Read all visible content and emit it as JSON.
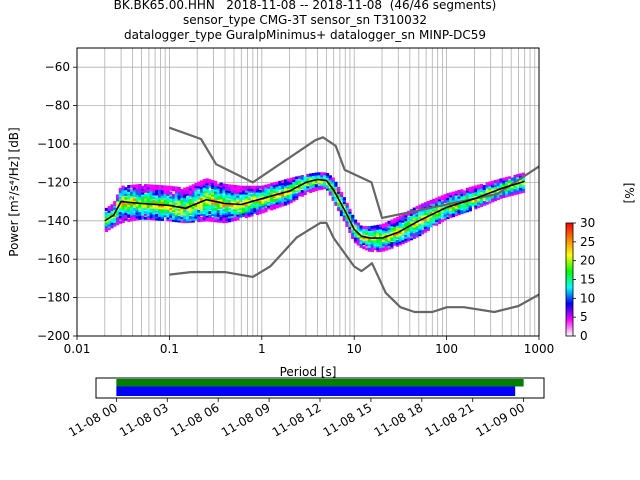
{
  "title": {
    "line1": "BK.BK65.00.HHN   2018-11-08 -- 2018-11-08  (46/46 segments)",
    "line2": "sensor_type CMG-3T sensor_sn T310032",
    "line3": "datalogger_type GuralpMinimus+ datalogger_sn MINP-DC59"
  },
  "chart_data": [
    {
      "type": "heatmap",
      "subtype": "probabilistic power spectral density",
      "xlabel": "Period [s]",
      "ylabel": "Power [m²/s⁴/Hz] [dB]",
      "xscale": "log",
      "xlim": [
        0.01,
        1000
      ],
      "ylim": [
        -200,
        -50
      ],
      "x_ticks": [
        "0.01",
        "0.1",
        "1",
        "10",
        "100",
        "1000"
      ],
      "y_ticks": [
        "−200",
        "−180",
        "−160",
        "−140",
        "−120",
        "−100",
        "−80",
        "−60"
      ],
      "grid": true,
      "colorbar": {
        "label": "[%]",
        "ticks": [
          "0",
          "5",
          "10",
          "15",
          "20",
          "25",
          "30"
        ],
        "range": [
          0,
          30
        ],
        "colors": [
          "#ffffff",
          "#ff00ff",
          "#0000ff",
          "#00ffff",
          "#00ff00",
          "#ffff00",
          "#ff8000",
          "#ff0000"
        ]
      },
      "series": [
        {
          "name": "",
          "role": "high noise model",
          "color": "#666666",
          "x": [
            0.1,
            0.22,
            0.32,
            0.8,
            3.8,
            4.6,
            6.3,
            7.9,
            15.4,
            20,
            354.8,
            10000
          ],
          "y": [
            -91.5,
            -97.4,
            -110.5,
            -120,
            -98,
            -96.5,
            -101,
            -113.5,
            -120,
            -138.5,
            -126,
            -80
          ]
        },
        {
          "name": "",
          "role": "low noise model",
          "color": "#666666",
          "x": [
            0.1,
            0.17,
            0.4,
            0.8,
            1.24,
            2.4,
            4.3,
            5,
            6,
            10,
            12,
            15.6,
            21.9,
            31.6,
            45,
            70,
            101,
            154,
            328,
            600,
            10000
          ],
          "y": [
            -168,
            -166.7,
            -166.7,
            -169.2,
            -163.7,
            -148.6,
            -141.1,
            -141.1,
            -149,
            -163.8,
            -166.2,
            -162.1,
            -177.5,
            -185,
            -187.5,
            -187.5,
            -185,
            -185,
            -187.5,
            -184.4,
            -151.5
          ]
        },
        {
          "name": "",
          "role": "median",
          "color": "#000000",
          "x": [
            0.02,
            0.025,
            0.03,
            0.05,
            0.1,
            0.15,
            0.25,
            0.4,
            0.6,
            1,
            2,
            3,
            4,
            5,
            6,
            8,
            10,
            12,
            15,
            20,
            30,
            50,
            100,
            200,
            400,
            700
          ],
          "y": [
            -140,
            -137,
            -130,
            -131,
            -132,
            -133.5,
            -129,
            -131,
            -131.5,
            -128.5,
            -124.5,
            -120,
            -118.5,
            -119,
            -124,
            -135,
            -144.5,
            -148,
            -149,
            -149,
            -146,
            -140,
            -133,
            -128.5,
            -123,
            -119.5
          ]
        }
      ],
      "density_band": {
        "x": [
          0.02,
          0.025,
          0.03,
          0.05,
          0.1,
          0.15,
          0.25,
          0.4,
          0.6,
          1,
          2,
          3,
          4,
          5,
          6,
          8,
          10,
          12,
          15,
          20,
          30,
          50,
          100,
          200,
          400,
          700
        ],
        "low": [
          -146,
          -143,
          -141,
          -139,
          -140,
          -141,
          -140,
          -141,
          -139,
          -136,
          -131,
          -126,
          -124,
          -123,
          -130,
          -141,
          -151,
          -154,
          -156,
          -156,
          -153,
          -148,
          -139,
          -134,
          -128,
          -125
        ],
        "high": [
          -134,
          -131,
          -122,
          -121,
          -122,
          -123,
          -118,
          -121,
          -122,
          -122,
          -118,
          -116,
          -115,
          -115,
          -118,
          -129,
          -139,
          -143,
          -143,
          -142,
          -138,
          -132,
          -126,
          -122,
          -118,
          -115
        ]
      }
    },
    {
      "type": "timeline",
      "x_ticks": [
        "11-08 00",
        "11-08 03",
        "11-08 06",
        "11-08 09",
        "11-08 12",
        "11-08 15",
        "11-08 18",
        "11-08 21",
        "11-09 00"
      ],
      "xlim_hours": [
        -1.2,
        25.2
      ],
      "bars": [
        {
          "role": "data availability",
          "color": "#008000",
          "start_h": 0,
          "end_h": 24.0
        },
        {
          "role": "processed segments",
          "color": "#0000ff",
          "start_h": 0,
          "end_h": 23.5
        }
      ]
    }
  ]
}
